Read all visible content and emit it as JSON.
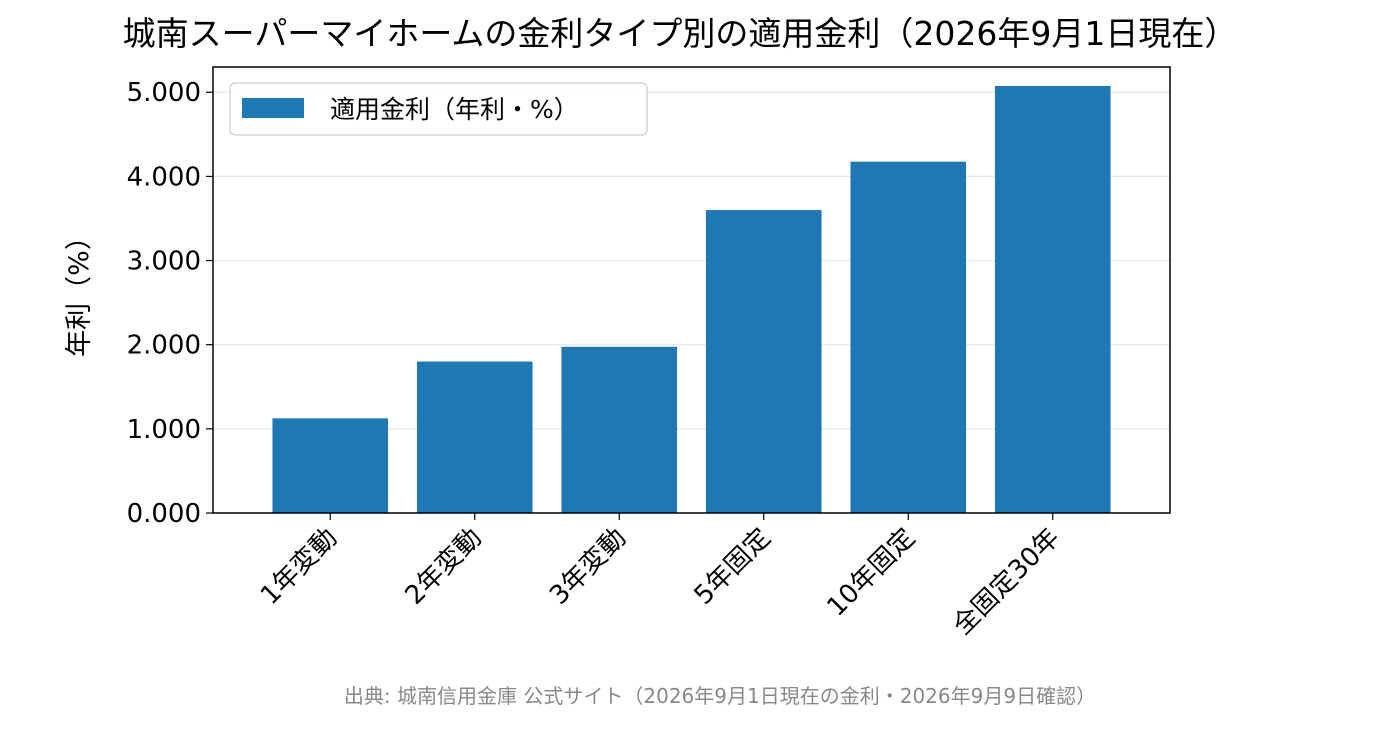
{
  "chart_data": {
    "type": "bar",
    "title": "城南スーパーマイホームの金利タイプ別の適用金利（2026年9月1日現在）",
    "ylabel": "年利（%）",
    "xlabel": "",
    "categories": [
      "1年変動",
      "2年変動",
      "3年変動",
      "5年固定",
      "10年固定",
      "全固定30年"
    ],
    "series": [
      {
        "name": "適用金利（年利・%）",
        "values": [
          1.125,
          1.8,
          1.975,
          3.6,
          4.175,
          5.075
        ]
      }
    ],
    "ylim": [
      0,
      5.3
    ],
    "yticks": [
      "0.000",
      "1.000",
      "2.000",
      "3.000",
      "4.000",
      "5.000"
    ],
    "ytick_values": [
      0,
      1,
      2,
      3,
      4,
      5
    ],
    "grid": "horizontal",
    "legend_position": "top-left",
    "colors": {
      "bar": "#1f77b4",
      "grid": "#e6e6e6",
      "source_text": "#888888"
    },
    "source": "出典: 城南信用金庫 公式サイト（2026年9月1日現在の金利・2026年9月9日確認）"
  }
}
